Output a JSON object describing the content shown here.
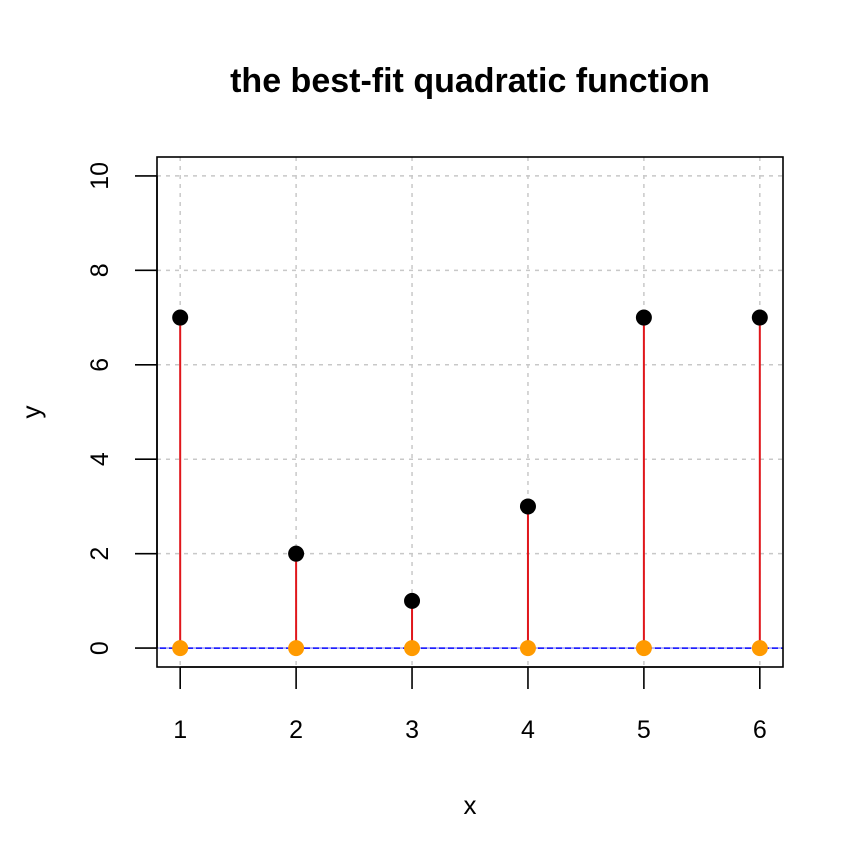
{
  "chart_data": {
    "type": "scatter",
    "title": "the best-fit quadratic function",
    "xlabel": "x",
    "ylabel": "y",
    "xlim": [
      0.8,
      6.2
    ],
    "ylim": [
      -0.4,
      10.4
    ],
    "x_ticks": [
      1,
      2,
      3,
      4,
      5,
      6
    ],
    "y_ticks": [
      0,
      2,
      4,
      6,
      8,
      10
    ],
    "grid": true,
    "points": [
      {
        "x": 1,
        "y": 7
      },
      {
        "x": 2,
        "y": 2
      },
      {
        "x": 3,
        "y": 1
      },
      {
        "x": 4,
        "y": 3
      },
      {
        "x": 5,
        "y": 7
      },
      {
        "x": 6,
        "y": 7
      }
    ],
    "fitted_points": [
      {
        "x": 1,
        "y": 0
      },
      {
        "x": 2,
        "y": 0
      },
      {
        "x": 3,
        "y": 0
      },
      {
        "x": 4,
        "y": 0
      },
      {
        "x": 5,
        "y": 0
      },
      {
        "x": 6,
        "y": 0
      }
    ],
    "fit_line_y": 0,
    "colors": {
      "points": "#000000",
      "fitted_points": "#ff9a00",
      "residuals": "#e0161b",
      "fit_line": "#0000ff",
      "grid": "#c8c8c8",
      "axis": "#000000"
    }
  }
}
